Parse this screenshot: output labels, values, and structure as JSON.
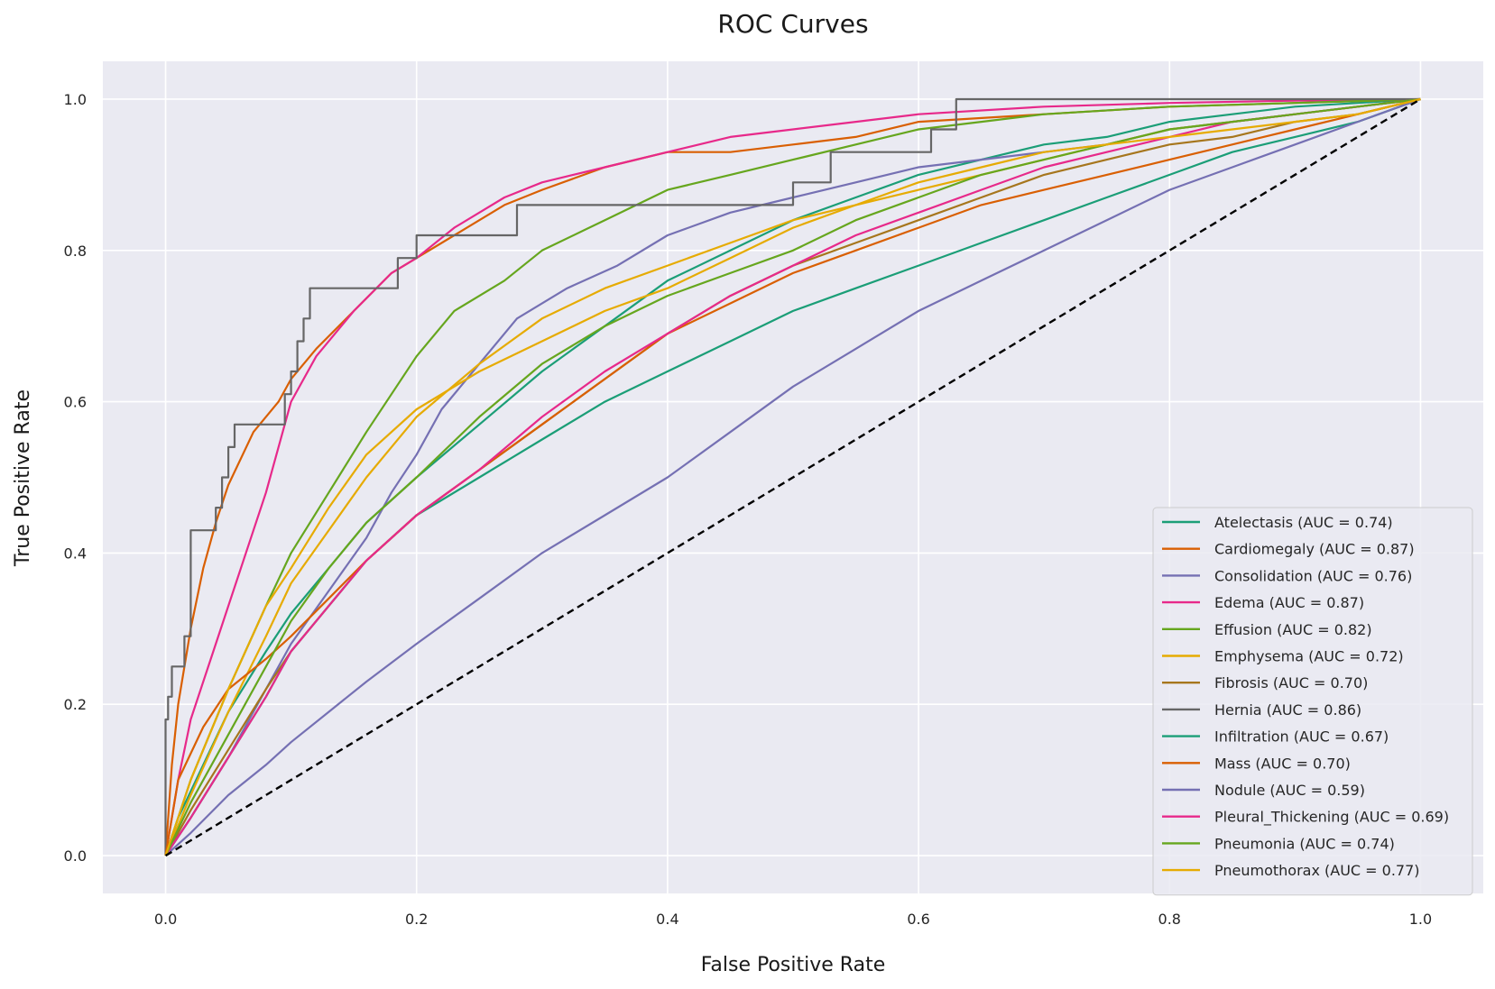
{
  "chart_data": {
    "type": "line",
    "title": "ROC Curves",
    "xlabel": "False Positive Rate",
    "ylabel": "True Positive Rate",
    "xlim": [
      -0.05,
      1.05
    ],
    "ylim": [
      -0.05,
      1.05
    ],
    "x_ticks": [
      "0.0",
      "0.2",
      "0.4",
      "0.6",
      "0.8",
      "1.0"
    ],
    "y_ticks": [
      "0.0",
      "0.2",
      "0.4",
      "0.6",
      "0.8",
      "1.0"
    ],
    "grid": true,
    "legend_position": "lower-right",
    "background_color": "#eaeaf2",
    "grid_color": "#ffffff",
    "diagonal": {
      "x": [
        0,
        1
      ],
      "y": [
        0,
        1
      ],
      "style": "dashed",
      "color": "#000000"
    },
    "series": [
      {
        "name": "Atelectasis (AUC = 0.74)",
        "color": "#1b9e77",
        "x": [
          0,
          0.01,
          0.03,
          0.05,
          0.08,
          0.1,
          0.13,
          0.16,
          0.2,
          0.25,
          0.3,
          0.35,
          0.4,
          0.45,
          0.5,
          0.55,
          0.6,
          0.65,
          0.7,
          0.75,
          0.8,
          0.85,
          0.9,
          0.95,
          1.0
        ],
        "y": [
          0,
          0.05,
          0.12,
          0.19,
          0.27,
          0.32,
          0.38,
          0.44,
          0.5,
          0.57,
          0.64,
          0.7,
          0.76,
          0.8,
          0.84,
          0.87,
          0.9,
          0.92,
          0.94,
          0.95,
          0.97,
          0.98,
          0.99,
          0.995,
          1.0
        ]
      },
      {
        "name": "Cardiomegaly (AUC = 0.87)",
        "color": "#d95f02",
        "x": [
          0,
          0.005,
          0.01,
          0.02,
          0.03,
          0.04,
          0.05,
          0.07,
          0.09,
          0.1,
          0.12,
          0.15,
          0.18,
          0.2,
          0.23,
          0.27,
          0.3,
          0.35,
          0.4,
          0.45,
          0.5,
          0.55,
          0.6,
          0.7,
          0.8,
          0.9,
          1.0
        ],
        "y": [
          0,
          0.12,
          0.2,
          0.3,
          0.38,
          0.44,
          0.49,
          0.56,
          0.6,
          0.63,
          0.67,
          0.72,
          0.77,
          0.79,
          0.82,
          0.86,
          0.88,
          0.91,
          0.93,
          0.93,
          0.94,
          0.95,
          0.97,
          0.98,
          0.99,
          0.995,
          1.0
        ]
      },
      {
        "name": "Consolidation (AUC = 0.76)",
        "color": "#7570b3",
        "x": [
          0,
          0.02,
          0.05,
          0.08,
          0.1,
          0.13,
          0.16,
          0.18,
          0.2,
          0.22,
          0.25,
          0.28,
          0.32,
          0.36,
          0.4,
          0.45,
          0.5,
          0.55,
          0.6,
          0.65,
          0.7,
          0.75,
          0.8,
          0.9,
          1.0
        ],
        "y": [
          0,
          0.05,
          0.13,
          0.22,
          0.28,
          0.35,
          0.42,
          0.48,
          0.53,
          0.59,
          0.65,
          0.71,
          0.75,
          0.78,
          0.82,
          0.85,
          0.87,
          0.89,
          0.91,
          0.92,
          0.93,
          0.94,
          0.96,
          0.98,
          1.0
        ]
      },
      {
        "name": "Edema (AUC = 0.87)",
        "color": "#e7298a",
        "x": [
          0,
          0.01,
          0.02,
          0.04,
          0.06,
          0.08,
          0.1,
          0.12,
          0.15,
          0.18,
          0.2,
          0.23,
          0.27,
          0.3,
          0.35,
          0.4,
          0.45,
          0.5,
          0.55,
          0.6,
          0.7,
          0.8,
          0.9,
          1.0
        ],
        "y": [
          0,
          0.1,
          0.18,
          0.28,
          0.38,
          0.48,
          0.6,
          0.66,
          0.72,
          0.77,
          0.79,
          0.83,
          0.87,
          0.89,
          0.91,
          0.93,
          0.95,
          0.96,
          0.97,
          0.98,
          0.99,
          0.995,
          0.998,
          1.0
        ]
      },
      {
        "name": "Effusion (AUC = 0.82)",
        "color": "#66a61e",
        "x": [
          0,
          0.02,
          0.05,
          0.08,
          0.1,
          0.13,
          0.16,
          0.2,
          0.23,
          0.27,
          0.3,
          0.35,
          0.4,
          0.45,
          0.5,
          0.55,
          0.6,
          0.65,
          0.7,
          0.8,
          0.9,
          1.0
        ],
        "y": [
          0,
          0.1,
          0.22,
          0.33,
          0.4,
          0.48,
          0.56,
          0.66,
          0.72,
          0.76,
          0.8,
          0.84,
          0.88,
          0.9,
          0.92,
          0.94,
          0.96,
          0.97,
          0.98,
          0.99,
          0.995,
          1.0
        ]
      },
      {
        "name": "Emphysema (AUC = 0.72)",
        "color": "#e6ab02",
        "x": [
          0,
          0.02,
          0.05,
          0.08,
          0.1,
          0.13,
          0.16,
          0.2,
          0.25,
          0.3,
          0.35,
          0.4,
          0.45,
          0.5,
          0.55,
          0.6,
          0.65,
          0.7,
          0.75,
          0.8,
          0.9,
          1.0
        ],
        "y": [
          0,
          0.08,
          0.19,
          0.29,
          0.36,
          0.43,
          0.5,
          0.58,
          0.65,
          0.71,
          0.75,
          0.78,
          0.81,
          0.84,
          0.86,
          0.88,
          0.9,
          0.92,
          0.94,
          0.96,
          0.98,
          1.0
        ]
      },
      {
        "name": "Fibrosis (AUC = 0.70)",
        "color": "#a6761d",
        "x": [
          0,
          0.02,
          0.05,
          0.08,
          0.1,
          0.13,
          0.16,
          0.2,
          0.25,
          0.3,
          0.35,
          0.4,
          0.45,
          0.5,
          0.55,
          0.6,
          0.65,
          0.7,
          0.75,
          0.8,
          0.85,
          0.9,
          0.95,
          1.0
        ],
        "y": [
          0,
          0.06,
          0.14,
          0.22,
          0.27,
          0.33,
          0.39,
          0.45,
          0.51,
          0.57,
          0.63,
          0.69,
          0.74,
          0.78,
          0.81,
          0.84,
          0.87,
          0.9,
          0.92,
          0.94,
          0.95,
          0.97,
          0.98,
          1.0
        ]
      },
      {
        "name": "Hernia (AUC = 0.86)",
        "color": "#666666",
        "step": true,
        "x": [
          0,
          0.002,
          0.005,
          0.01,
          0.015,
          0.02,
          0.025,
          0.04,
          0.045,
          0.05,
          0.055,
          0.06,
          0.075,
          0.095,
          0.1,
          0.105,
          0.11,
          0.115,
          0.12,
          0.125,
          0.13,
          0.185,
          0.19,
          0.2,
          0.205,
          0.21,
          0.28,
          0.285,
          0.5,
          0.505,
          0.53,
          0.535,
          0.61,
          0.615,
          0.63,
          0.635,
          1.0
        ],
        "y": [
          0,
          0.18,
          0.21,
          0.25,
          0.25,
          0.29,
          0.43,
          0.43,
          0.46,
          0.5,
          0.54,
          0.57,
          0.57,
          0.57,
          0.61,
          0.64,
          0.68,
          0.71,
          0.75,
          0.75,
          0.75,
          0.75,
          0.79,
          0.79,
          0.82,
          0.82,
          0.82,
          0.86,
          0.86,
          0.89,
          0.89,
          0.93,
          0.93,
          0.96,
          0.96,
          1.0,
          1.0
        ]
      },
      {
        "name": "Infiltration (AUC = 0.67)",
        "color": "#1b9e77",
        "x": [
          0,
          0.02,
          0.05,
          0.08,
          0.1,
          0.13,
          0.16,
          0.2,
          0.25,
          0.3,
          0.35,
          0.4,
          0.45,
          0.5,
          0.55,
          0.6,
          0.65,
          0.7,
          0.75,
          0.8,
          0.85,
          0.9,
          0.95,
          1.0
        ],
        "y": [
          0,
          0.05,
          0.13,
          0.21,
          0.27,
          0.33,
          0.39,
          0.45,
          0.5,
          0.55,
          0.6,
          0.64,
          0.68,
          0.72,
          0.75,
          0.78,
          0.81,
          0.84,
          0.87,
          0.9,
          0.93,
          0.95,
          0.97,
          1.0
        ]
      },
      {
        "name": "Mass (AUC = 0.70)",
        "color": "#d95f02",
        "x": [
          0,
          0.01,
          0.03,
          0.05,
          0.08,
          0.1,
          0.13,
          0.16,
          0.2,
          0.25,
          0.3,
          0.35,
          0.4,
          0.45,
          0.5,
          0.55,
          0.6,
          0.65,
          0.7,
          0.75,
          0.8,
          0.85,
          0.9,
          0.95,
          1.0
        ],
        "y": [
          0,
          0.1,
          0.17,
          0.22,
          0.26,
          0.29,
          0.34,
          0.39,
          0.45,
          0.51,
          0.57,
          0.63,
          0.69,
          0.73,
          0.77,
          0.8,
          0.83,
          0.86,
          0.88,
          0.9,
          0.92,
          0.94,
          0.96,
          0.98,
          1.0
        ]
      },
      {
        "name": "Nodule (AUC = 0.59)",
        "color": "#7570b3",
        "x": [
          0,
          0.02,
          0.05,
          0.08,
          0.1,
          0.13,
          0.16,
          0.2,
          0.25,
          0.3,
          0.35,
          0.4,
          0.45,
          0.5,
          0.55,
          0.6,
          0.65,
          0.7,
          0.75,
          0.8,
          0.85,
          0.9,
          0.95,
          1.0
        ],
        "y": [
          0,
          0.03,
          0.08,
          0.12,
          0.15,
          0.19,
          0.23,
          0.28,
          0.34,
          0.4,
          0.45,
          0.5,
          0.56,
          0.62,
          0.67,
          0.72,
          0.76,
          0.8,
          0.84,
          0.88,
          0.91,
          0.94,
          0.97,
          1.0
        ]
      },
      {
        "name": "Pleural_Thickening (AUC = 0.69)",
        "color": "#e7298a",
        "x": [
          0,
          0.02,
          0.05,
          0.08,
          0.1,
          0.13,
          0.16,
          0.2,
          0.25,
          0.3,
          0.35,
          0.4,
          0.45,
          0.5,
          0.55,
          0.6,
          0.65,
          0.7,
          0.75,
          0.8,
          0.85,
          0.9,
          0.95,
          1.0
        ],
        "y": [
          0,
          0.05,
          0.13,
          0.21,
          0.27,
          0.33,
          0.39,
          0.45,
          0.51,
          0.58,
          0.64,
          0.69,
          0.74,
          0.78,
          0.82,
          0.85,
          0.88,
          0.91,
          0.93,
          0.95,
          0.97,
          0.98,
          0.99,
          1.0
        ]
      },
      {
        "name": "Pneumonia (AUC = 0.74)",
        "color": "#66a61e",
        "x": [
          0,
          0.02,
          0.05,
          0.08,
          0.1,
          0.13,
          0.16,
          0.2,
          0.25,
          0.3,
          0.35,
          0.4,
          0.45,
          0.5,
          0.55,
          0.6,
          0.65,
          0.7,
          0.75,
          0.8,
          0.85,
          0.9,
          0.95,
          1.0
        ],
        "y": [
          0,
          0.07,
          0.16,
          0.25,
          0.31,
          0.38,
          0.44,
          0.5,
          0.58,
          0.65,
          0.7,
          0.74,
          0.77,
          0.8,
          0.84,
          0.87,
          0.9,
          0.92,
          0.94,
          0.96,
          0.97,
          0.98,
          0.99,
          1.0
        ]
      },
      {
        "name": "Pneumothorax (AUC = 0.77)",
        "color": "#e6ab02",
        "x": [
          0,
          0.02,
          0.05,
          0.08,
          0.1,
          0.13,
          0.16,
          0.2,
          0.25,
          0.3,
          0.35,
          0.4,
          0.45,
          0.5,
          0.55,
          0.6,
          0.65,
          0.7,
          0.75,
          0.8,
          0.85,
          0.9,
          0.95,
          1.0
        ],
        "y": [
          0,
          0.1,
          0.22,
          0.33,
          0.38,
          0.46,
          0.53,
          0.59,
          0.64,
          0.68,
          0.72,
          0.75,
          0.79,
          0.83,
          0.86,
          0.89,
          0.91,
          0.93,
          0.94,
          0.95,
          0.96,
          0.97,
          0.98,
          1.0
        ]
      }
    ]
  }
}
